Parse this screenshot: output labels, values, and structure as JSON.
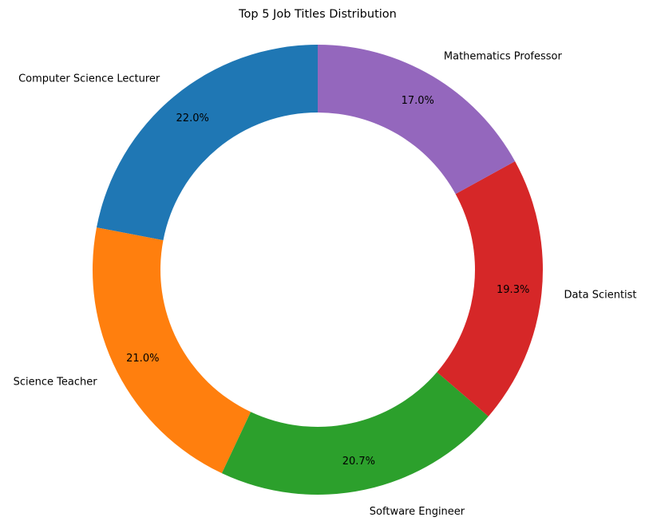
{
  "chart_data": {
    "type": "pie",
    "variant": "donut",
    "title": "Top 5 Job Titles Distribution",
    "start_angle_deg": 90,
    "direction": "counterclockwise",
    "slices": [
      {
        "label": "Computer Science Lecturer",
        "value": 22.0,
        "pct_label": "22.0%",
        "color": "#1f77b4"
      },
      {
        "label": "Science Teacher",
        "value": 21.0,
        "pct_label": "21.0%",
        "color": "#ff7f0e"
      },
      {
        "label": "Software Engineer",
        "value": 20.7,
        "pct_label": "20.7%",
        "color": "#2ca02c"
      },
      {
        "label": "Data Scientist",
        "value": 19.3,
        "pct_label": "19.3%",
        "color": "#d62728"
      },
      {
        "label": "Mathematics Professor",
        "value": 17.0,
        "pct_label": "17.0%",
        "color": "#9467bd"
      }
    ]
  }
}
